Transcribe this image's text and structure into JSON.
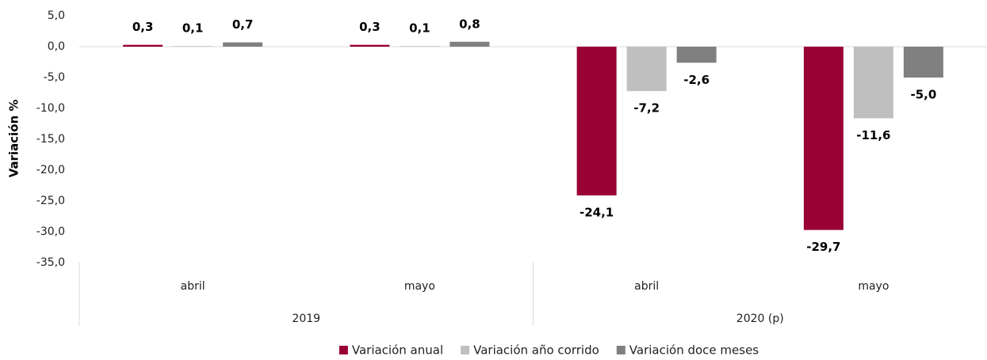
{
  "chart_data": {
    "type": "bar",
    "y_label": "Variación %",
    "categories": [
      "abril",
      "mayo",
      "abril",
      "mayo"
    ],
    "category_groups": [
      "2019",
      "2019",
      "2020 (p)",
      "2020 (p)"
    ],
    "series": [
      {
        "name": "Variación anual",
        "color": "#990033",
        "values": [
          0.3,
          0.3,
          -24.1,
          -29.7
        ],
        "value_labels": [
          "0,3",
          "0,3",
          "-24,1",
          "-29,7"
        ]
      },
      {
        "name": "Variación año corrido",
        "color": "#bfbfbf",
        "values": [
          0.1,
          0.1,
          -7.2,
          -11.6
        ],
        "value_labels": [
          "0,1",
          "0,1",
          "-7,2",
          "-11,6"
        ]
      },
      {
        "name": "Variación doce meses",
        "color": "#808080",
        "values": [
          0.7,
          0.8,
          -2.6,
          -5.0
        ],
        "value_labels": [
          "0,7",
          "0,8",
          "-2,6",
          "-5,0"
        ]
      }
    ],
    "ylim": [
      -35,
      5
    ],
    "yticks": [
      {
        "value": 5,
        "label": "5,0"
      },
      {
        "value": 0,
        "label": "0,0"
      },
      {
        "value": -5,
        "label": "-5,0"
      },
      {
        "value": -10,
        "label": "-10,0"
      },
      {
        "value": -15,
        "label": "-15,0"
      },
      {
        "value": -20,
        "label": "-20,0"
      },
      {
        "value": -25,
        "label": "-25,0"
      },
      {
        "value": -30,
        "label": "-30,0"
      },
      {
        "value": -35,
        "label": "-35,0"
      }
    ],
    "grid": false,
    "legend": "bottom"
  }
}
